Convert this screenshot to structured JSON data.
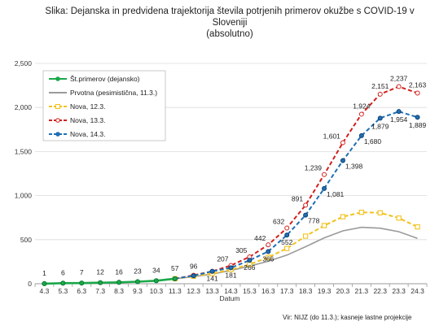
{
  "chart_data": {
    "type": "line",
    "title_lines": [
      "Slika: Dejanska in predvidena trajektorija števila potrjenih primerov okužbe s COVID-19  v",
      "Sloveniji",
      "(absolutno)"
    ],
    "xlabel": "Datum",
    "ylabel": "",
    "source_note": "Vir: NIJZ (do 11.3.); kasneje lastne projekcije",
    "categories": [
      "4.3",
      "5.3",
      "6.3",
      "7.3",
      "8.3",
      "9.3",
      "10.3",
      "11.3",
      "12.3",
      "13.3",
      "14.3",
      "15.3",
      "16.3",
      "17.3",
      "18.3",
      "19.3",
      "20.3",
      "21.3",
      "22.3",
      "23.3",
      "24.3"
    ],
    "y_ticks": [
      "0",
      "500",
      "1,000",
      "1,500",
      "2,000",
      "2,500"
    ],
    "ylim": [
      0,
      2500
    ],
    "legend_position": "top-left",
    "series": [
      {
        "name": "Št.primerov (dejansko)",
        "color": "#1aa84a",
        "style": "solid",
        "marker": "circle",
        "values": [
          1,
          6,
          7,
          12,
          16,
          23,
          34,
          57,
          null,
          null,
          null,
          null,
          null,
          null,
          null,
          null,
          null,
          null,
          null,
          null,
          null
        ],
        "labels": [
          "1",
          "6",
          "7",
          "12",
          "16",
          "23",
          "34",
          "57",
          "",
          "",
          "",
          "",
          "",
          "",
          "",
          "",
          "",
          "",
          "",
          "",
          ""
        ]
      },
      {
        "name": "Prvotna (pesimistična, 11.3.)",
        "color": "#9a9a9a",
        "style": "solid",
        "marker": "none",
        "values": [
          null,
          null,
          null,
          null,
          null,
          null,
          null,
          57,
          80,
          110,
          150,
          200,
          255,
          325,
          420,
          520,
          600,
          640,
          630,
          590,
          515
        ],
        "labels": [
          "",
          "",
          "",
          "",
          "",
          "",
          "",
          "",
          "",
          "",
          "",
          "",
          "",
          "",
          "",
          "",
          "",
          "",
          "",
          "",
          ""
        ]
      },
      {
        "name": "Nova,  12.3.",
        "color": "#f2c21a",
        "style": "dashed",
        "marker": "square",
        "values": [
          null,
          null,
          null,
          null,
          null,
          null,
          null,
          57,
          85,
          115,
          160,
          220,
          300,
          400,
          540,
          660,
          760,
          810,
          805,
          745,
          645
        ],
        "labels": [
          "",
          "",
          "",
          "",
          "",
          "",
          "",
          "",
          "",
          "",
          "",
          "",
          "",
          "",
          "",
          "",
          "",
          "",
          "",
          "",
          ""
        ]
      },
      {
        "name": "Nova,  13.3.",
        "color": "#d0201c",
        "style": "dashed",
        "marker": "circle",
        "values": [
          null,
          null,
          null,
          null,
          null,
          null,
          null,
          57,
          96,
          141,
          207,
          305,
          442,
          632,
          891,
          1239,
          1601,
          1924,
          2151,
          2237,
          2163
        ],
        "labels": [
          "",
          "",
          "",
          "",
          "",
          "",
          "",
          "",
          "96",
          "",
          "207",
          "305",
          "442",
          "632",
          "891",
          "1,239",
          "1,601",
          "1,924",
          "2,151",
          "2,237",
          "2,163"
        ]
      },
      {
        "name": "Nova,  14.3.",
        "color": "#1f6fb5",
        "style": "dashed",
        "marker": "circle",
        "values": [
          null,
          null,
          null,
          null,
          null,
          null,
          null,
          57,
          90,
          141,
          181,
          266,
          366,
          552,
          778,
          1081,
          1398,
          1680,
          1879,
          1954,
          1889
        ],
        "labels": [
          "",
          "",
          "",
          "",
          "",
          "",
          "",
          "",
          "",
          "141",
          "181",
          "266",
          "366",
          "552",
          "778",
          "1,081",
          "1,398",
          "1,680",
          "1,879",
          "1,954",
          "1,889"
        ]
      }
    ]
  }
}
